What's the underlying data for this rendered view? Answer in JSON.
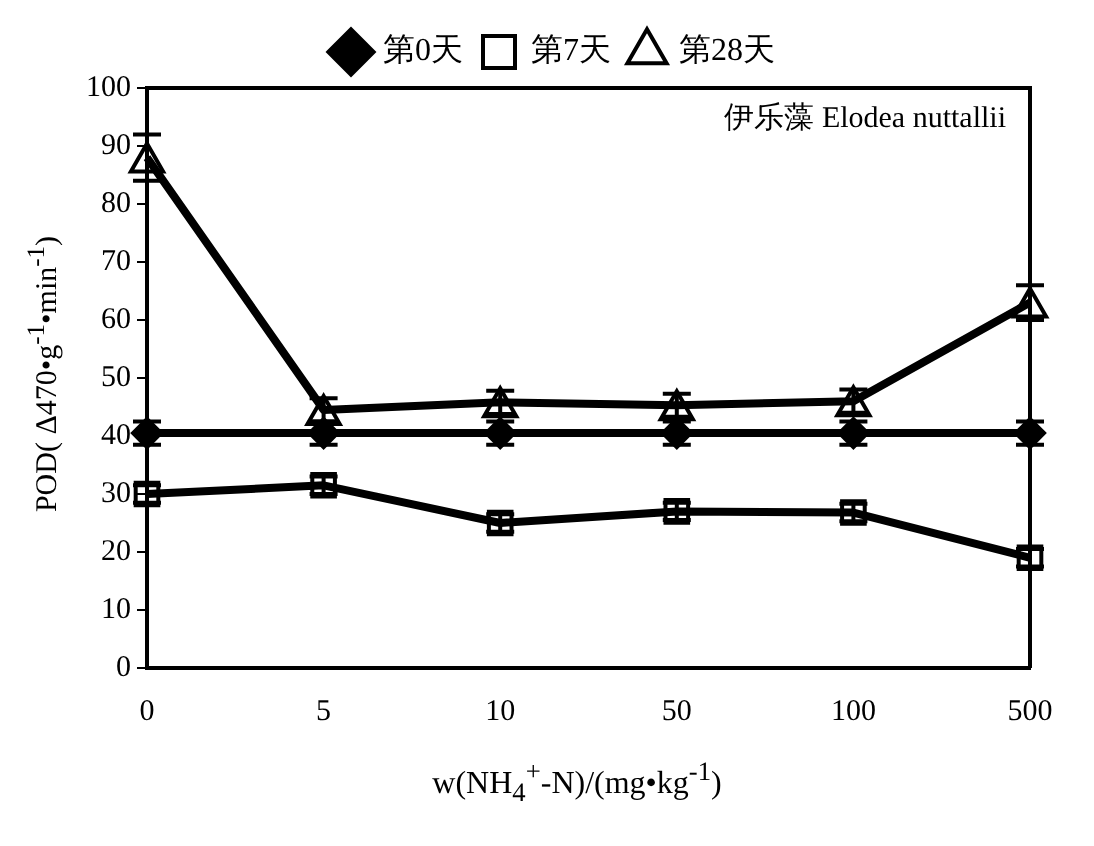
{
  "chart_data": {
    "type": "line",
    "xlabel": "w(NH$_{4}$$^{+}$-N)/(mg•kg$^{-1}$)",
    "ylabel": "POD( Δ470•g$^{-1}$•min$^{-1}$)",
    "annotations": [
      "伊乐藻 Elodea nuttallii"
    ],
    "categories": [
      "0",
      "5",
      "10",
      "50",
      "100",
      "500"
    ],
    "series": [
      {
        "name": "第0天",
        "color": "#000000",
        "marker": "diamond",
        "values": [
          40.5,
          40.5,
          40.5,
          40.5,
          40.5,
          40.5
        ],
        "errors": [
          2,
          2,
          2,
          2,
          2,
          2
        ]
      },
      {
        "name": "第7天",
        "color": "#000000",
        "marker": "square",
        "values": [
          30,
          31.5,
          25,
          27,
          26.8,
          19
        ],
        "errors": [
          1.5,
          1.5,
          1.5,
          1.5,
          1.5,
          1.5
        ]
      },
      {
        "name": "第28天",
        "color": "#000000",
        "marker": "triangle",
        "values": [
          88,
          44.5,
          45.8,
          45.3,
          46,
          63
        ],
        "errors": [
          4,
          2,
          2,
          2,
          2,
          3
        ]
      }
    ],
    "ylim": [
      0,
      100
    ],
    "yticks": [
      0,
      10,
      20,
      30,
      40,
      50,
      60,
      70,
      80,
      90,
      100
    ],
    "grid": false,
    "legend": "top",
    "line_style": "solid"
  }
}
